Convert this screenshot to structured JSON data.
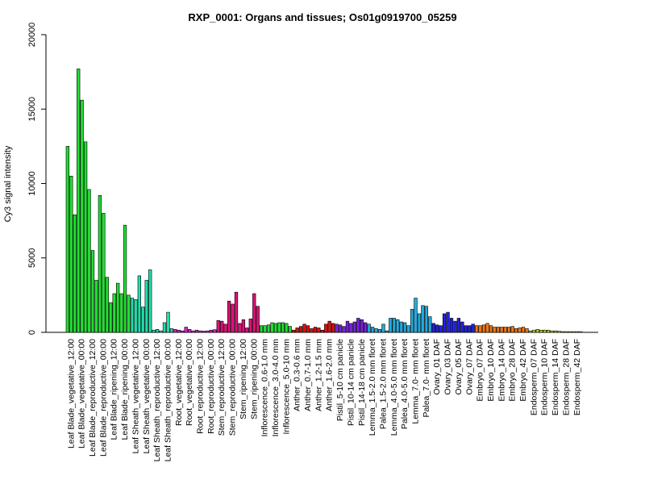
{
  "chart_data": {
    "type": "bar",
    "title": "RXP_0001: Organs and tissues; Os01g0919700_05259",
    "ylabel": "Cy3 signal intensity",
    "xlabel": "",
    "ylim": [
      0,
      20000
    ],
    "yticks": [
      0,
      5000,
      10000,
      15000,
      20000
    ],
    "grid": false,
    "legend": "none",
    "groups": [
      {
        "label": "Leaf Blade_vegetative_12:00",
        "color": "#22dd33",
        "values": [
          12500,
          10500,
          7900
        ]
      },
      {
        "label": "Leaf Blade_vegetative_00:00",
        "color": "#22dd33",
        "values": [
          17700,
          15600,
          12800
        ]
      },
      {
        "label": "Leaf Blade_reproductive_12:00",
        "color": "#22dd33",
        "values": [
          9600,
          5500,
          3500
        ]
      },
      {
        "label": "Leaf Blade_reproductive_00:00",
        "color": "#22dd33",
        "values": [
          9200,
          8000,
          3700
        ]
      },
      {
        "label": "Leaf Blade_ripening_12:00",
        "color": "#22dd33",
        "values": [
          2000,
          2600,
          3300
        ]
      },
      {
        "label": "Leaf Blade_ripening_00:00",
        "color": "#22dd33",
        "values": [
          2600,
          7200,
          2500
        ]
      },
      {
        "label": "Leaf Sheath_vegetative_12:00",
        "color": "#22ddaa",
        "values": [
          2300,
          2200,
          3800
        ]
      },
      {
        "label": "Leaf Sheath_vegetative_00:00",
        "color": "#22ddaa",
        "values": [
          1700,
          3500,
          4200
        ]
      },
      {
        "label": "Leaf Sheath_reproductive_12:00",
        "color": "#22ddaa",
        "values": [
          150,
          200,
          100
        ]
      },
      {
        "label": "Leaf Sheath_reproductive_00:00",
        "color": "#22ddaa",
        "values": [
          650,
          1350,
          250
        ]
      },
      {
        "label": "Root_vegetative_12:00",
        "color": "#dd22cc",
        "values": [
          200,
          150,
          100
        ]
      },
      {
        "label": "Root_vegetative_00:00",
        "color": "#dd22cc",
        "values": [
          350,
          200,
          100
        ]
      },
      {
        "label": "Root_reproductive_12:00",
        "color": "#dd22cc",
        "values": [
          150,
          100,
          80
        ]
      },
      {
        "label": "Root_reproductive_00:00",
        "color": "#dd22cc",
        "values": [
          100,
          150,
          180
        ]
      },
      {
        "label": "Stem_reproductive_12:00",
        "color": "#dd1177",
        "values": [
          800,
          750,
          550
        ]
      },
      {
        "label": "Stem_reproductive_00:00",
        "color": "#dd1177",
        "values": [
          2100,
          1900,
          2700
        ]
      },
      {
        "label": "Stem_ripening_12:00",
        "color": "#dd1177",
        "values": [
          600,
          850,
          300
        ]
      },
      {
        "label": "Stem_ripening_00:00",
        "color": "#dd1177",
        "values": [
          900,
          2600,
          1750
        ]
      },
      {
        "label": "Inflorescence_0.6-1.0 mm",
        "color": "#22dd33",
        "values": [
          450,
          450,
          500
        ]
      },
      {
        "label": "Inflorescence_3.0-4.0 mm",
        "color": "#22dd33",
        "values": [
          650,
          600,
          650
        ]
      },
      {
        "label": "Inflorescence_5.0-10 mm",
        "color": "#22dd33",
        "values": [
          650,
          600,
          400
        ]
      },
      {
        "label": "Anther_0.3-0.6 mm",
        "color": "#dd1111",
        "values": [
          150,
          300,
          400
        ]
      },
      {
        "label": "Anther_0.7-1.0 mm",
        "color": "#dd1111",
        "values": [
          550,
          450,
          250
        ]
      },
      {
        "label": "Anther_1.2-1.5 mm",
        "color": "#dd1111",
        "values": [
          350,
          300,
          150
        ]
      },
      {
        "label": "Anther_1.6-2.0 mm",
        "color": "#dd1111",
        "values": [
          550,
          750,
          600
        ]
      },
      {
        "label": "Pistil_5-10 cm panicle",
        "color": "#7722dd",
        "values": [
          550,
          500,
          400
        ]
      },
      {
        "label": "Pistil_10-14 cm panicle",
        "color": "#7722dd",
        "values": [
          750,
          600,
          700
        ]
      },
      {
        "label": "Pistil_14-18 cm panicle",
        "color": "#7722dd",
        "values": [
          950,
          850,
          650
        ]
      },
      {
        "label": "Lemma_1.5-2.0 mm floret",
        "color": "#22aadd",
        "values": [
          550,
          350,
          250
        ]
      },
      {
        "label": "Palea_1.5-2.0 mm floret",
        "color": "#22aadd",
        "values": [
          200,
          550,
          100
        ]
      },
      {
        "label": "Lemma_4.0-5.0 mm floret",
        "color": "#22aadd",
        "values": [
          950,
          950,
          850
        ]
      },
      {
        "label": "Palea_4.0-5.0 mm floret",
        "color": "#22aadd",
        "values": [
          700,
          650,
          450
        ]
      },
      {
        "label": "Lemma_7.0- mm floret",
        "color": "#22aadd",
        "values": [
          1550,
          2300,
          1250
        ]
      },
      {
        "label": "Palea_7.0- mm floret",
        "color": "#22aadd",
        "values": [
          1800,
          1750,
          1050
        ]
      },
      {
        "label": "Ovary_01 DAF",
        "color": "#2222dd",
        "values": [
          600,
          500,
          450
        ]
      },
      {
        "label": "Ovary_03 DAF",
        "color": "#2222dd",
        "values": [
          1250,
          1350,
          950
        ]
      },
      {
        "label": "Ovary_05 DAF",
        "color": "#2222dd",
        "values": [
          750,
          950,
          700
        ]
      },
      {
        "label": "Ovary_07 DAF",
        "color": "#2222dd",
        "values": [
          450,
          450,
          550
        ]
      },
      {
        "label": "Embryo_07 DAF",
        "color": "#ee7711",
        "values": [
          450,
          450,
          500
        ]
      },
      {
        "label": "Embryo_10 DAF",
        "color": "#ee7711",
        "values": [
          600,
          450,
          350
        ]
      },
      {
        "label": "Embryo_14 DAF",
        "color": "#ee7711",
        "values": [
          350,
          350,
          350
        ]
      },
      {
        "label": "Embryo_28 DAF",
        "color": "#ee7711",
        "values": [
          350,
          400,
          250
        ]
      },
      {
        "label": "Embryo_42 DAF",
        "color": "#ee7711",
        "values": [
          300,
          350,
          250
        ]
      },
      {
        "label": "Endosperm_07 DAF",
        "color": "#bbdd22",
        "values": [
          100,
          150,
          200
        ]
      },
      {
        "label": "Endosperm_10 DAF",
        "color": "#bbdd22",
        "values": [
          150,
          150,
          150
        ]
      },
      {
        "label": "Endosperm_14 DAF",
        "color": "#bbdd22",
        "values": [
          100,
          100,
          80
        ]
      },
      {
        "label": "Endosperm_28 DAF",
        "color": "#bbdd22",
        "values": [
          50,
          50,
          50
        ]
      },
      {
        "label": "Endosperm_42 DAF",
        "color": "#bbdd22",
        "values": [
          50,
          50,
          50
        ]
      }
    ]
  }
}
